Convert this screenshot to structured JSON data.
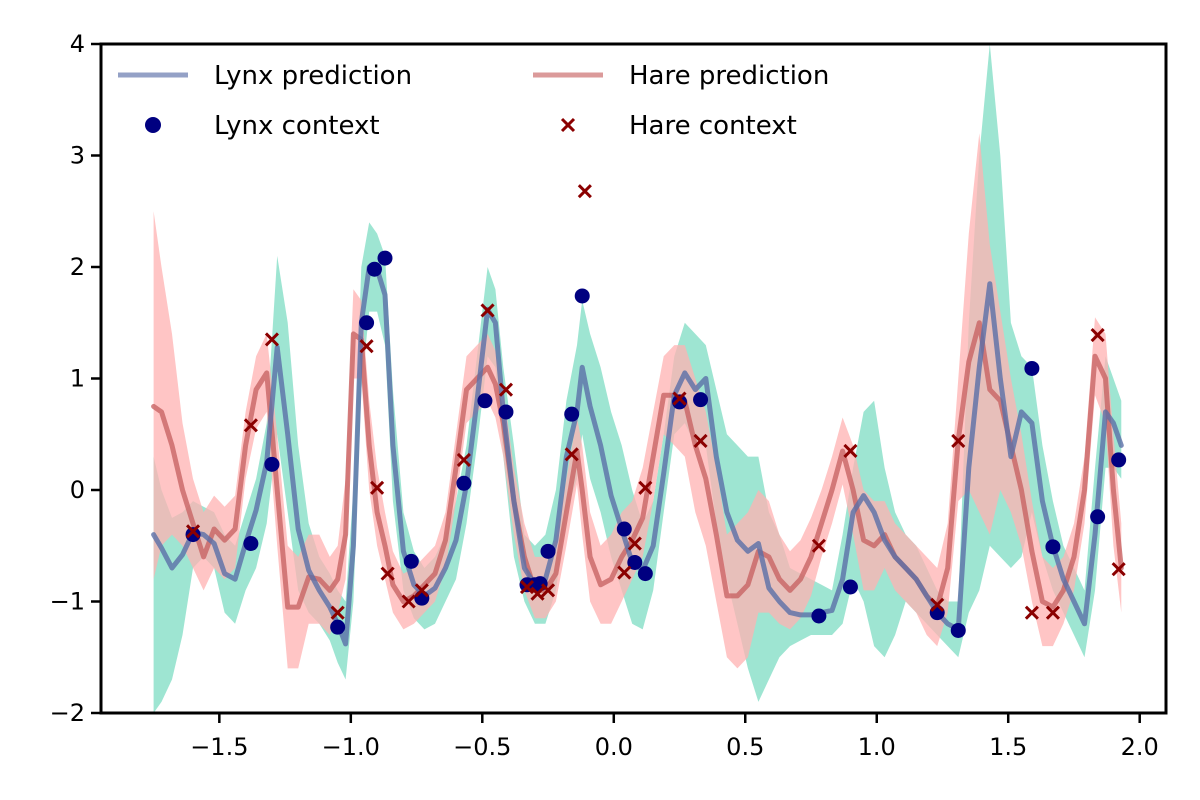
{
  "chart_data": {
    "type": "line",
    "xlim": [
      -1.95,
      2.1
    ],
    "ylim": [
      -2,
      4
    ],
    "x_ticks": [
      -1.5,
      -1.0,
      -0.5,
      0.0,
      0.5,
      1.0,
      1.5,
      2.0
    ],
    "x_tick_labels": [
      "−1.5",
      "−1.0",
      "−0.5",
      "0.0",
      "0.5",
      "1.0",
      "1.5",
      "2.0"
    ],
    "y_ticks": [
      -2,
      -1,
      0,
      1,
      2,
      3,
      4
    ],
    "y_tick_labels": [
      "−2",
      "−1",
      "0",
      "1",
      "2",
      "3",
      "4"
    ],
    "grid": false,
    "legend_position": "top-left",
    "colors": {
      "lynx_line": "#5a6fa8",
      "lynx_band": "#7ddcc3",
      "lynx_point": "#000080",
      "hare_line": "#c86464",
      "hare_band": "#ffb2b2",
      "hare_point": "#8b0000"
    },
    "legend": [
      {
        "label": "Lynx prediction",
        "kind": "line",
        "series": "lynx_prediction"
      },
      {
        "label": "Hare prediction",
        "kind": "line",
        "series": "hare_prediction"
      },
      {
        "label": "Lynx context",
        "kind": "dot",
        "series": "lynx_context"
      },
      {
        "label": "Hare context",
        "kind": "cross",
        "series": "hare_context"
      }
    ],
    "series": [
      {
        "name": "Lynx prediction",
        "id": "lynx_prediction",
        "kind": "line_band",
        "x": [
          -1.75,
          -1.72,
          -1.68,
          -1.64,
          -1.6,
          -1.56,
          -1.52,
          -1.48,
          -1.44,
          -1.4,
          -1.36,
          -1.32,
          -1.28,
          -1.24,
          -1.2,
          -1.16,
          -1.12,
          -1.08,
          -1.05,
          -1.02,
          -0.99,
          -0.96,
          -0.93,
          -0.9,
          -0.87,
          -0.84,
          -0.8,
          -0.76,
          -0.72,
          -0.68,
          -0.64,
          -0.6,
          -0.56,
          -0.52,
          -0.48,
          -0.45,
          -0.42,
          -0.38,
          -0.34,
          -0.3,
          -0.26,
          -0.22,
          -0.18,
          -0.14,
          -0.12,
          -0.09,
          -0.05,
          -0.01,
          0.03,
          0.07,
          0.11,
          0.15,
          0.19,
          0.23,
          0.27,
          0.31,
          0.35,
          0.39,
          0.43,
          0.47,
          0.51,
          0.55,
          0.59,
          0.63,
          0.67,
          0.71,
          0.75,
          0.79,
          0.83,
          0.87,
          0.91,
          0.95,
          0.99,
          1.03,
          1.07,
          1.11,
          1.15,
          1.19,
          1.23,
          1.27,
          1.31,
          1.35,
          1.39,
          1.43,
          1.47,
          1.51,
          1.55,
          1.59,
          1.63,
          1.67,
          1.71,
          1.75,
          1.79,
          1.83,
          1.87,
          1.9,
          1.93
        ],
        "y": [
          -0.4,
          -0.52,
          -0.7,
          -0.58,
          -0.38,
          -0.4,
          -0.48,
          -0.75,
          -0.8,
          -0.48,
          -0.18,
          0.25,
          1.28,
          0.5,
          -0.35,
          -0.72,
          -0.9,
          -1.05,
          -1.2,
          -1.38,
          -0.5,
          1.5,
          2.0,
          1.98,
          1.75,
          0.4,
          -0.55,
          -0.85,
          -0.95,
          -0.88,
          -0.7,
          -0.45,
          0.05,
          0.8,
          1.62,
          1.5,
          0.7,
          -0.1,
          -0.7,
          -0.85,
          -0.8,
          -0.45,
          0.3,
          0.7,
          1.1,
          0.75,
          0.4,
          -0.05,
          -0.35,
          -0.65,
          -0.72,
          -0.5,
          0.15,
          0.85,
          1.05,
          0.9,
          1.0,
          0.3,
          -0.2,
          -0.45,
          -0.55,
          -0.48,
          -0.88,
          -1.0,
          -1.1,
          -1.12,
          -1.12,
          -1.1,
          -1.08,
          -0.8,
          -0.2,
          -0.05,
          -0.2,
          -0.45,
          -0.6,
          -0.7,
          -0.8,
          -0.95,
          -1.1,
          -1.2,
          -1.25,
          0.2,
          1.1,
          1.85,
          1.0,
          0.3,
          0.7,
          0.6,
          -0.1,
          -0.5,
          -0.8,
          -1.0,
          -1.2,
          -0.4,
          0.7,
          0.6,
          0.4
        ],
        "upper": [
          0.3,
          0.0,
          -0.25,
          -0.2,
          -0.1,
          -0.15,
          -0.2,
          -0.4,
          -0.5,
          -0.2,
          0.1,
          0.6,
          2.1,
          1.5,
          0.4,
          -0.3,
          -0.6,
          -0.75,
          -0.9,
          -1.0,
          0.0,
          2.0,
          2.4,
          2.3,
          2.1,
          0.9,
          -0.2,
          -0.55,
          -0.7,
          -0.6,
          -0.4,
          -0.1,
          0.4,
          1.2,
          2.0,
          1.8,
          1.1,
          0.4,
          -0.4,
          -0.5,
          -0.4,
          0.0,
          0.8,
          1.3,
          1.7,
          1.4,
          1.1,
          0.7,
          0.4,
          0.0,
          -0.3,
          -0.1,
          0.5,
          1.2,
          1.5,
          1.4,
          1.3,
          0.9,
          0.5,
          0.4,
          0.3,
          0.3,
          -0.2,
          -0.4,
          -0.7,
          -0.75,
          -0.8,
          -0.85,
          -0.9,
          -0.4,
          0.2,
          0.7,
          0.8,
          0.2,
          -0.2,
          -0.4,
          -0.5,
          -0.7,
          -0.9,
          -1.0,
          -1.0,
          1.5,
          3.0,
          4.0,
          3.0,
          1.5,
          1.2,
          1.1,
          0.4,
          -0.1,
          -0.5,
          -0.7,
          -0.9,
          0.2,
          1.2,
          1.0,
          0.8
        ],
        "lower": [
          -2.0,
          -1.9,
          -1.7,
          -1.3,
          -0.7,
          -0.6,
          -0.7,
          -1.1,
          -1.2,
          -0.9,
          -0.7,
          -0.3,
          0.5,
          -0.2,
          -0.9,
          -1.1,
          -1.2,
          -1.35,
          -1.55,
          -1.7,
          -1.0,
          0.9,
          1.6,
          1.6,
          1.3,
          -0.1,
          -0.9,
          -1.15,
          -1.25,
          -1.2,
          -1.0,
          -0.8,
          -0.3,
          0.4,
          1.2,
          1.1,
          0.3,
          -0.6,
          -1.0,
          -1.2,
          -1.2,
          -0.9,
          -0.2,
          0.1,
          0.5,
          0.1,
          -0.2,
          -0.6,
          -0.9,
          -1.2,
          -1.25,
          -0.9,
          -0.2,
          0.5,
          0.6,
          0.4,
          0.4,
          -0.3,
          -0.8,
          -1.2,
          -1.6,
          -1.9,
          -1.7,
          -1.5,
          -1.4,
          -1.35,
          -1.3,
          -1.3,
          -1.3,
          -1.2,
          -0.8,
          -1.0,
          -1.4,
          -1.5,
          -1.3,
          -1.0,
          -1.1,
          -1.2,
          -1.3,
          -1.4,
          -1.5,
          -1.1,
          -0.9,
          -0.5,
          -0.6,
          -0.7,
          -0.6,
          -0.2,
          -0.6,
          -0.9,
          -1.1,
          -1.3,
          -1.5,
          -0.9,
          0.2,
          0.2,
          0.1
        ]
      },
      {
        "name": "Hare prediction",
        "id": "hare_prediction",
        "kind": "line_band",
        "x": [
          -1.75,
          -1.72,
          -1.68,
          -1.64,
          -1.6,
          -1.56,
          -1.52,
          -1.48,
          -1.44,
          -1.4,
          -1.36,
          -1.32,
          -1.28,
          -1.24,
          -1.2,
          -1.16,
          -1.12,
          -1.08,
          -1.05,
          -1.02,
          -0.99,
          -0.96,
          -0.93,
          -0.9,
          -0.87,
          -0.84,
          -0.8,
          -0.76,
          -0.72,
          -0.68,
          -0.64,
          -0.6,
          -0.56,
          -0.52,
          -0.48,
          -0.45,
          -0.42,
          -0.38,
          -0.34,
          -0.3,
          -0.26,
          -0.22,
          -0.18,
          -0.14,
          -0.12,
          -0.09,
          -0.05,
          -0.01,
          0.03,
          0.07,
          0.11,
          0.15,
          0.19,
          0.23,
          0.27,
          0.31,
          0.35,
          0.39,
          0.43,
          0.47,
          0.51,
          0.55,
          0.59,
          0.63,
          0.67,
          0.71,
          0.75,
          0.79,
          0.83,
          0.87,
          0.91,
          0.95,
          0.99,
          1.03,
          1.07,
          1.11,
          1.15,
          1.19,
          1.23,
          1.27,
          1.31,
          1.35,
          1.39,
          1.43,
          1.47,
          1.51,
          1.55,
          1.59,
          1.63,
          1.67,
          1.71,
          1.75,
          1.79,
          1.83,
          1.87,
          1.9,
          1.93
        ],
        "y": [
          0.75,
          0.7,
          0.4,
          0.0,
          -0.3,
          -0.6,
          -0.35,
          -0.45,
          -0.35,
          0.4,
          0.9,
          1.05,
          0.0,
          -1.05,
          -1.05,
          -0.78,
          -0.8,
          -0.9,
          -0.8,
          -0.4,
          1.4,
          1.35,
          0.4,
          -0.2,
          -0.5,
          -0.85,
          -1.0,
          -0.95,
          -0.85,
          -0.75,
          -0.45,
          0.2,
          0.9,
          1.0,
          1.1,
          0.95,
          0.6,
          -0.1,
          -0.6,
          -0.9,
          -0.9,
          -0.75,
          -0.2,
          0.35,
          0.0,
          -0.6,
          -0.85,
          -0.8,
          -0.6,
          -0.45,
          -0.25,
          0.3,
          0.85,
          0.85,
          0.8,
          0.4,
          0.1,
          -0.4,
          -0.95,
          -0.95,
          -0.85,
          -0.55,
          -0.6,
          -0.8,
          -0.9,
          -0.8,
          -0.6,
          -0.3,
          0.0,
          0.35,
          0.0,
          -0.45,
          -0.5,
          -0.4,
          -0.6,
          -0.7,
          -0.8,
          -0.95,
          -1.05,
          -0.7,
          0.45,
          1.15,
          1.5,
          0.9,
          0.8,
          0.4,
          0.0,
          -0.55,
          -1.0,
          -1.05,
          -0.9,
          -0.6,
          0.0,
          1.2,
          1.0,
          0.0,
          -0.7
        ],
        "upper": [
          2.5,
          2.0,
          1.4,
          0.6,
          0.1,
          -0.2,
          -0.05,
          -0.15,
          -0.05,
          0.7,
          1.2,
          1.4,
          0.5,
          -0.5,
          -0.6,
          -0.4,
          -0.4,
          -0.6,
          -0.5,
          0.1,
          1.8,
          1.7,
          0.8,
          0.2,
          -0.2,
          -0.55,
          -0.75,
          -0.7,
          -0.6,
          -0.5,
          -0.2,
          0.5,
          1.2,
          1.3,
          1.4,
          1.25,
          0.9,
          0.2,
          -0.3,
          -0.6,
          -0.6,
          -0.45,
          0.1,
          0.65,
          0.4,
          -0.2,
          -0.5,
          -0.4,
          -0.2,
          -0.1,
          0.2,
          0.7,
          1.2,
          1.3,
          1.3,
          1.0,
          0.7,
          0.2,
          -0.4,
          -0.3,
          -0.2,
          0.0,
          -0.1,
          -0.4,
          -0.55,
          -0.45,
          -0.25,
          0.0,
          0.3,
          0.65,
          0.4,
          0.0,
          -0.1,
          -0.1,
          -0.3,
          -0.4,
          -0.5,
          -0.6,
          -0.7,
          -0.3,
          1.0,
          2.3,
          3.2,
          2.2,
          1.6,
          1.0,
          0.5,
          -0.1,
          -0.6,
          -0.7,
          -0.6,
          -0.3,
          0.3,
          1.55,
          1.4,
          0.5,
          -0.3
        ],
        "lower": [
          -0.8,
          -0.5,
          -0.4,
          -0.5,
          -0.7,
          -0.9,
          -0.7,
          -0.8,
          -0.7,
          0.1,
          0.55,
          0.7,
          -0.5,
          -1.6,
          -1.6,
          -1.2,
          -1.2,
          -1.3,
          -1.1,
          -0.8,
          1.0,
          1.0,
          0.0,
          -0.5,
          -0.8,
          -1.1,
          -1.25,
          -1.2,
          -1.1,
          -1.0,
          -0.7,
          -0.1,
          0.6,
          0.7,
          0.8,
          0.65,
          0.3,
          -0.4,
          -0.9,
          -1.15,
          -1.15,
          -1.0,
          -0.5,
          0.05,
          -0.4,
          -1.0,
          -1.2,
          -1.2,
          -1.0,
          -0.8,
          -0.6,
          -0.1,
          0.5,
          0.4,
          0.3,
          -0.2,
          -0.5,
          -1.0,
          -1.5,
          -1.6,
          -1.5,
          -1.1,
          -1.1,
          -1.2,
          -1.25,
          -1.15,
          -0.95,
          -0.6,
          -0.3,
          0.05,
          -0.4,
          -0.9,
          -0.9,
          -0.7,
          -0.9,
          -1.0,
          -1.1,
          -1.3,
          -1.4,
          -1.1,
          -0.1,
          0.0,
          -0.2,
          -0.4,
          0.0,
          -0.2,
          -0.5,
          -1.0,
          -1.4,
          -1.4,
          -1.2,
          -0.9,
          -0.3,
          0.85,
          0.6,
          -0.5,
          -1.1
        ]
      },
      {
        "name": "Lynx context",
        "id": "lynx_context",
        "kind": "scatter",
        "x": [
          -1.6,
          -1.38,
          -1.3,
          -1.05,
          -0.94,
          -0.91,
          -0.87,
          -0.77,
          -0.73,
          -0.57,
          -0.49,
          -0.41,
          -0.33,
          -0.3,
          -0.28,
          -0.25,
          -0.16,
          -0.12,
          0.04,
          0.08,
          0.12,
          0.25,
          0.33,
          0.78,
          0.9,
          1.23,
          1.31,
          1.59,
          1.67,
          1.84,
          1.92
        ],
        "y": [
          -0.4,
          -0.48,
          0.23,
          -1.23,
          1.5,
          1.98,
          2.08,
          -0.64,
          -0.97,
          0.06,
          0.8,
          0.7,
          -0.85,
          -0.85,
          -0.84,
          -0.55,
          0.68,
          1.74,
          -0.35,
          -0.65,
          -0.75,
          0.79,
          0.81,
          -1.13,
          -0.87,
          -1.1,
          -1.26,
          1.09,
          -0.51,
          -0.24,
          0.27
        ]
      },
      {
        "name": "Hare context",
        "id": "hare_context",
        "kind": "scatter",
        "x": [
          -1.6,
          -1.38,
          -1.3,
          -1.05,
          -0.94,
          -0.9,
          -0.86,
          -0.78,
          -0.73,
          -0.57,
          -0.48,
          -0.41,
          -0.33,
          -0.29,
          -0.25,
          -0.16,
          -0.11,
          0.04,
          0.08,
          0.12,
          0.25,
          0.33,
          0.78,
          0.9,
          1.23,
          1.31,
          1.59,
          1.67,
          1.84,
          1.92
        ],
        "y": [
          -0.37,
          0.58,
          1.35,
          -1.1,
          1.29,
          0.02,
          -0.75,
          -1.0,
          -0.9,
          0.27,
          1.61,
          0.9,
          -0.87,
          -0.93,
          -0.9,
          0.32,
          2.68,
          -0.74,
          -0.48,
          0.02,
          0.82,
          0.44,
          -0.5,
          0.35,
          -1.03,
          0.44,
          -1.1,
          -1.1,
          1.39,
          -0.71
        ]
      }
    ]
  }
}
